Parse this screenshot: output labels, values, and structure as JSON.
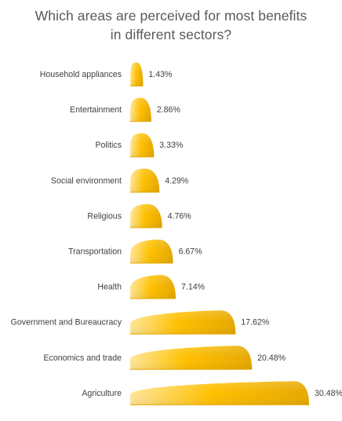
{
  "chart_data": {
    "type": "bar",
    "orientation": "horizontal",
    "title_lines": [
      "Which areas are perceived for most benefits",
      "in different sectors?"
    ],
    "categories": [
      "Household appliances",
      "Entertainment",
      "Politics",
      "Social environment",
      "Religious",
      "Transportation",
      "Health",
      "Government and Bureaucracy",
      "Economics and trade",
      "Agriculture"
    ],
    "values": [
      1.43,
      2.86,
      3.33,
      4.29,
      4.76,
      6.67,
      7.14,
      17.62,
      20.48,
      30.48
    ],
    "value_labels": [
      "1.43%",
      "2.86%",
      "3.33%",
      "4.29%",
      "4.76%",
      "6.67%",
      "7.14%",
      "17.62%",
      "20.48%",
      "30.48%"
    ],
    "xlim": [
      0,
      30.48
    ],
    "grid": false,
    "legend": "none",
    "bar_color": "#FFC000",
    "bar_color_light": "#FFE699",
    "bar_color_dark": "#E6A800"
  }
}
